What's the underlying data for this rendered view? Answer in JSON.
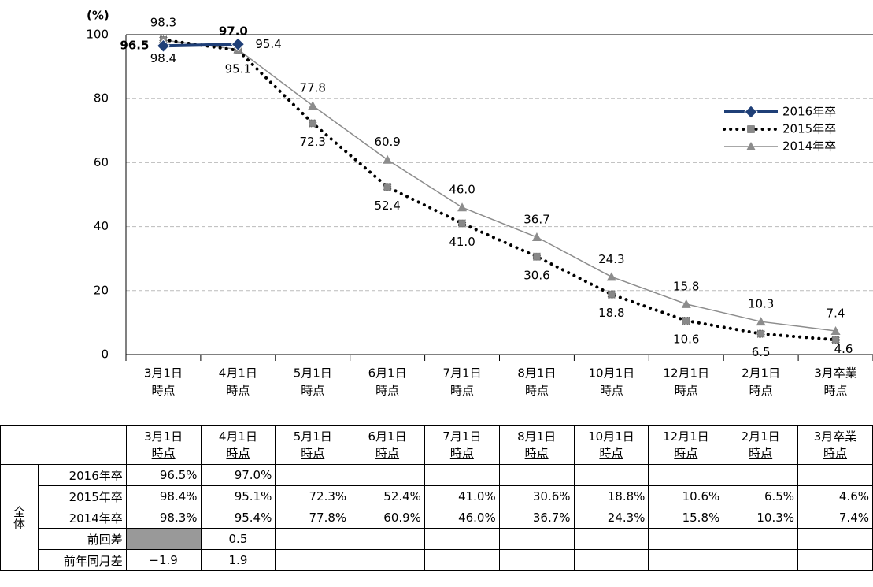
{
  "chart_data": {
    "type": "line",
    "y_label": "(%)",
    "categories": [
      [
        "3月1日",
        "時点"
      ],
      [
        "4月1日",
        "時点"
      ],
      [
        "5月1日",
        "時点"
      ],
      [
        "6月1日",
        "時点"
      ],
      [
        "7月1日",
        "時点"
      ],
      [
        "8月1日",
        "時点"
      ],
      [
        "10月1日",
        "時点"
      ],
      [
        "12月1日",
        "時点"
      ],
      [
        "2月1日",
        "時点"
      ],
      [
        "3月卒業",
        "時点"
      ]
    ],
    "ylim": [
      0,
      100
    ],
    "yticks": [
      0,
      20,
      40,
      60,
      80,
      100
    ],
    "grid": true,
    "legend": "upper-right",
    "series": [
      {
        "name": "2016年卒",
        "color": "#1f3f77",
        "line_style": "solid",
        "marker": "diamond",
        "values": [
          96.5,
          97.0,
          null,
          null,
          null,
          null,
          null,
          null,
          null,
          null
        ],
        "value_labels": [
          "96.5",
          "97.0",
          null,
          null,
          null,
          null,
          null,
          null,
          null,
          null
        ]
      },
      {
        "name": "2015年卒",
        "color": "#000000",
        "line_style": "dotted",
        "marker": "square",
        "values": [
          98.4,
          95.1,
          72.3,
          52.4,
          41.0,
          30.6,
          18.8,
          10.6,
          6.5,
          4.6
        ],
        "value_labels": [
          "98.4",
          "95.1",
          "72.3",
          "52.4",
          "41.0",
          "30.6",
          "18.8",
          "10.6",
          "6.5",
          "4.6"
        ]
      },
      {
        "name": "2014年卒",
        "color": "#8c8c8c",
        "line_style": "solid",
        "marker": "triangle",
        "values": [
          98.3,
          95.4,
          77.8,
          60.9,
          46.0,
          36.7,
          24.3,
          15.8,
          10.3,
          7.4
        ],
        "value_labels": [
          "98.3",
          "95.4",
          "77.8",
          "60.9",
          "46.0",
          "36.7",
          "24.3",
          "15.8",
          "10.3",
          "7.4"
        ]
      }
    ]
  },
  "table": {
    "group": "全体",
    "columns": [
      [
        "3月1日",
        "時点"
      ],
      [
        "4月1日",
        "時点"
      ],
      [
        "5月1日",
        "時点"
      ],
      [
        "6月1日",
        "時点"
      ],
      [
        "7月1日",
        "時点"
      ],
      [
        "8月1日",
        "時点"
      ],
      [
        "10月1日",
        "時点"
      ],
      [
        "12月1日",
        "時点"
      ],
      [
        "2月1日",
        "時点"
      ],
      [
        "3月卒業",
        "時点"
      ]
    ],
    "rows": [
      {
        "label": "2016年卒",
        "cells": [
          "96.5%",
          "97.0%"
        ]
      },
      {
        "label": "2015年卒",
        "cells": [
          "98.4%",
          "95.1%",
          "72.3%",
          "52.4%",
          "41.0%",
          "30.6%",
          "18.8%",
          "10.6%",
          "6.5%",
          "4.6%"
        ]
      },
      {
        "label": "2014年卒",
        "cells": [
          "98.3%",
          "95.4%",
          "77.8%",
          "60.9%",
          "46.0%",
          "36.7%",
          "24.3%",
          "15.8%",
          "10.3%",
          "7.4%"
        ]
      },
      {
        "label": "前回差",
        "cells": [
          null,
          "0.5"
        ]
      },
      {
        "label": "前年同月差",
        "cells": [
          "−1.9",
          "1.9"
        ]
      }
    ]
  }
}
